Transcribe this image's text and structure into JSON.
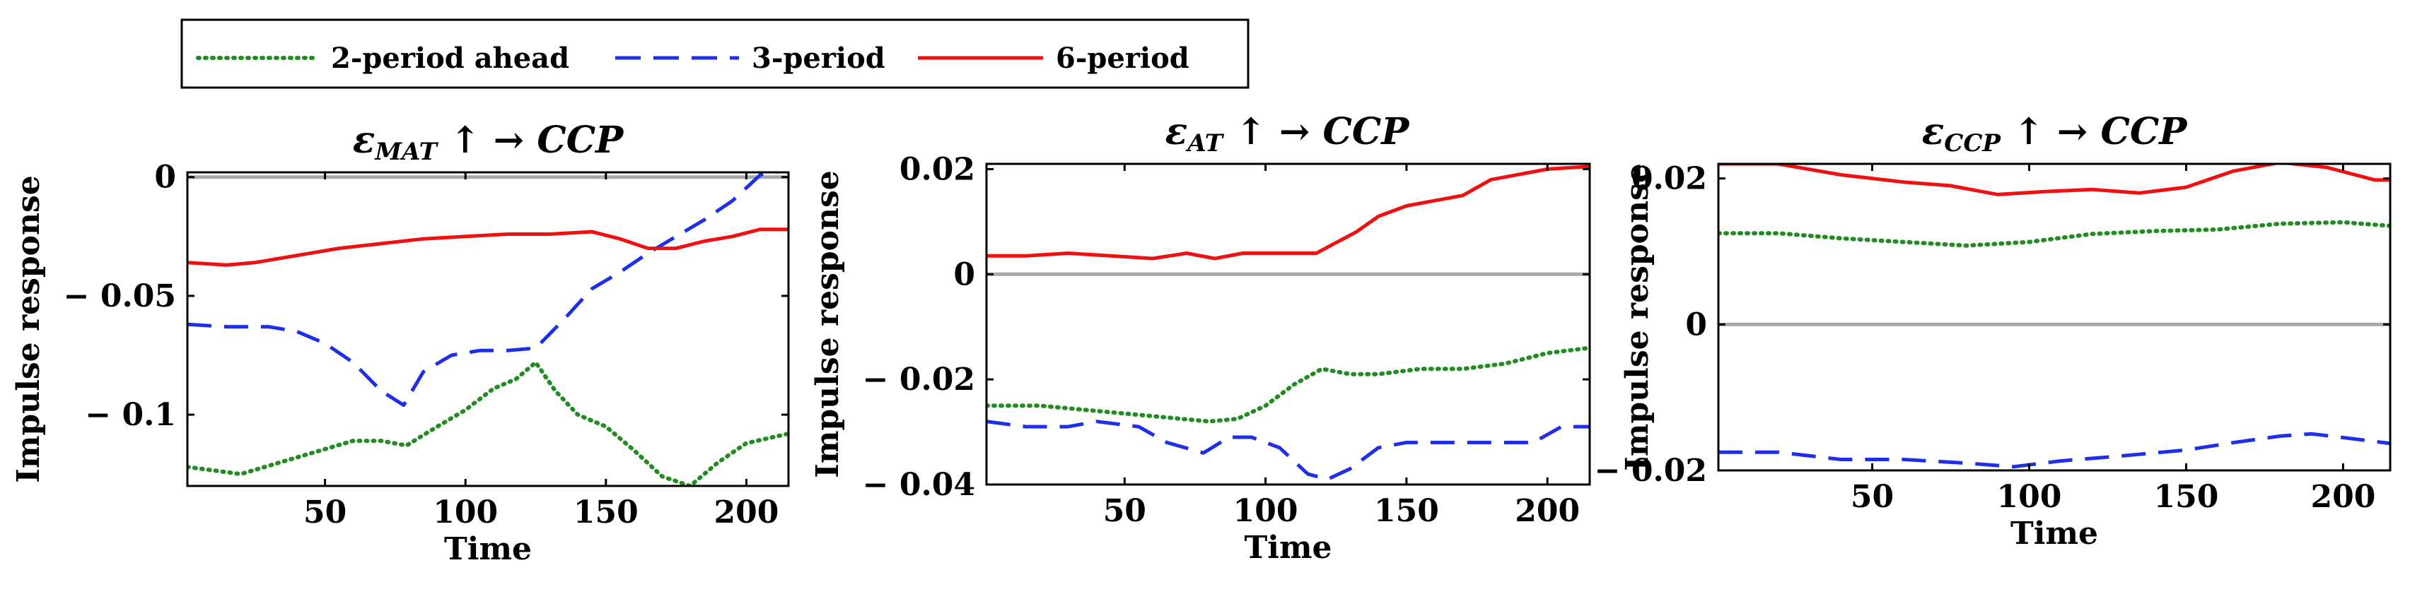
{
  "legend": {
    "placement": "top-left, above panels",
    "entries": [
      {
        "label": "2-period ahead",
        "color": "#228B22",
        "style": "dotted"
      },
      {
        "label": "3-period",
        "color": "#1f2fe6",
        "style": "dashed"
      },
      {
        "label": "6-period",
        "color": "#ee1111",
        "style": "solid"
      }
    ]
  },
  "chart_data": [
    {
      "type": "line",
      "title": {
        "sym": "ε",
        "sub": "MAT",
        "arrow": "↑ →",
        "target": "CCP"
      },
      "xlabel": "Time",
      "ylabel": "Impulse response",
      "xlim": [
        1,
        215
      ],
      "ylim": [
        -0.13,
        0.002
      ],
      "xticks": [
        50,
        100,
        150,
        200
      ],
      "xtick_labels": [
        "50",
        "100",
        "150",
        "200"
      ],
      "yticks": [
        0,
        -0.05,
        -0.1
      ],
      "ytick_labels": [
        "0",
        "− 0.05",
        "− 0.1"
      ],
      "zero_line": true,
      "series": [
        {
          "name": "2-period ahead",
          "color": "#228B22",
          "style": "dotted",
          "x": [
            1,
            20,
            40,
            60,
            70,
            79,
            90,
            100,
            110,
            118,
            125,
            132,
            140,
            150,
            160,
            170,
            180,
            190,
            200,
            215
          ],
          "y": [
            -0.122,
            -0.125,
            -0.118,
            -0.111,
            -0.111,
            -0.113,
            -0.105,
            -0.098,
            -0.089,
            -0.085,
            -0.078,
            -0.09,
            -0.1,
            -0.105,
            -0.115,
            -0.126,
            -0.13,
            -0.12,
            -0.112,
            -0.108
          ]
        },
        {
          "name": "3-period",
          "color": "#1f2fe6",
          "style": "dashed",
          "x": [
            1,
            15,
            30,
            40,
            50,
            60,
            70,
            78,
            85,
            95,
            105,
            115,
            125,
            135,
            145,
            155,
            165,
            175,
            185,
            195,
            205,
            215
          ],
          "y": [
            -0.062,
            -0.063,
            -0.063,
            -0.065,
            -0.07,
            -0.078,
            -0.09,
            -0.096,
            -0.082,
            -0.075,
            -0.073,
            -0.073,
            -0.072,
            -0.06,
            -0.047,
            -0.04,
            -0.032,
            -0.025,
            -0.018,
            -0.01,
            0.001,
            0.003
          ]
        },
        {
          "name": "6-period",
          "color": "#ee1111",
          "style": "solid",
          "x": [
            1,
            15,
            25,
            40,
            55,
            70,
            85,
            100,
            115,
            130,
            145,
            155,
            165,
            175,
            185,
            195,
            205,
            215
          ],
          "y": [
            -0.036,
            -0.037,
            -0.036,
            -0.033,
            -0.03,
            -0.028,
            -0.026,
            -0.025,
            -0.024,
            -0.024,
            -0.023,
            -0.026,
            -0.03,
            -0.03,
            -0.027,
            -0.025,
            -0.022,
            -0.022
          ]
        }
      ]
    },
    {
      "type": "line",
      "title": {
        "sym": "ε",
        "sub": "AT",
        "arrow": "↑ →",
        "target": "CCP"
      },
      "xlabel": "Time",
      "ylabel": "Impulse response",
      "xlim": [
        1,
        215
      ],
      "ylim": [
        -0.04,
        0.021
      ],
      "xticks": [
        50,
        100,
        150,
        200
      ],
      "xtick_labels": [
        "50",
        "100",
        "150",
        "200"
      ],
      "yticks": [
        0.02,
        0,
        -0.02,
        -0.04
      ],
      "ytick_labels": [
        "0.02",
        "0",
        "− 0.02",
        "− 0.04"
      ],
      "zero_line": true,
      "series": [
        {
          "name": "2-period ahead",
          "color": "#228B22",
          "style": "dotted",
          "x": [
            1,
            20,
            40,
            60,
            80,
            90,
            100,
            110,
            120,
            130,
            140,
            155,
            170,
            185,
            200,
            215
          ],
          "y": [
            -0.025,
            -0.025,
            -0.026,
            -0.027,
            -0.028,
            -0.0275,
            -0.025,
            -0.021,
            -0.018,
            -0.019,
            -0.019,
            -0.018,
            -0.018,
            -0.017,
            -0.015,
            -0.014
          ]
        },
        {
          "name": "3-period",
          "color": "#1f2fe6",
          "style": "dashed",
          "x": [
            1,
            15,
            30,
            40,
            55,
            65,
            78,
            87,
            95,
            105,
            115,
            122,
            130,
            140,
            150,
            165,
            180,
            195,
            205,
            215
          ],
          "y": [
            -0.028,
            -0.029,
            -0.029,
            -0.028,
            -0.029,
            -0.032,
            -0.034,
            -0.031,
            -0.031,
            -0.033,
            -0.038,
            -0.039,
            -0.037,
            -0.033,
            -0.032,
            -0.032,
            -0.032,
            -0.032,
            -0.029,
            -0.029
          ]
        },
        {
          "name": "6-period",
          "color": "#ee1111",
          "style": "solid",
          "x": [
            1,
            15,
            30,
            45,
            60,
            72,
            82,
            92,
            105,
            118,
            125,
            132,
            140,
            150,
            160,
            170,
            180,
            190,
            200,
            215
          ],
          "y": [
            0.0035,
            0.0035,
            0.004,
            0.0035,
            0.003,
            0.004,
            0.003,
            0.004,
            0.004,
            0.004,
            0.006,
            0.008,
            0.011,
            0.013,
            0.014,
            0.015,
            0.018,
            0.019,
            0.02,
            0.0205
          ]
        }
      ]
    },
    {
      "type": "line",
      "title": {
        "sym": "ε",
        "sub": "CCP",
        "arrow": "↑ →",
        "target": "CCP"
      },
      "xlabel": "Time",
      "ylabel": "Impulse response",
      "xlim": [
        1,
        215
      ],
      "ylim": [
        -0.02,
        0.022
      ],
      "xticks": [
        50,
        100,
        150,
        200
      ],
      "xtick_labels": [
        "50",
        "100",
        "150",
        "200"
      ],
      "yticks": [
        0.02,
        0,
        -0.02
      ],
      "ytick_labels": [
        "0.02",
        "0",
        "− 0.02"
      ],
      "zero_line": true,
      "series": [
        {
          "name": "2-period ahead",
          "color": "#228B22",
          "style": "dotted",
          "x": [
            1,
            20,
            40,
            60,
            80,
            100,
            120,
            140,
            160,
            180,
            200,
            215
          ],
          "y": [
            0.0125,
            0.0125,
            0.0118,
            0.0113,
            0.0108,
            0.0113,
            0.0124,
            0.0128,
            0.013,
            0.0138,
            0.014,
            0.0135
          ]
        },
        {
          "name": "3-period",
          "color": "#1f2fe6",
          "style": "dashed",
          "x": [
            1,
            20,
            40,
            60,
            80,
            95,
            110,
            130,
            150,
            165,
            180,
            190,
            200,
            215
          ],
          "y": [
            -0.0175,
            -0.0175,
            -0.0185,
            -0.0185,
            -0.019,
            -0.0195,
            -0.0187,
            -0.018,
            -0.0172,
            -0.0162,
            -0.0153,
            -0.015,
            -0.0155,
            -0.0163
          ]
        },
        {
          "name": "6-period",
          "color": "#ee1111",
          "style": "solid",
          "x": [
            1,
            20,
            40,
            60,
            75,
            90,
            105,
            120,
            135,
            150,
            165,
            180,
            195,
            210,
            215
          ],
          "y": [
            0.022,
            0.022,
            0.0205,
            0.0195,
            0.019,
            0.0178,
            0.0182,
            0.0185,
            0.018,
            0.0188,
            0.021,
            0.0222,
            0.0215,
            0.0198,
            0.0198
          ]
        }
      ]
    }
  ]
}
